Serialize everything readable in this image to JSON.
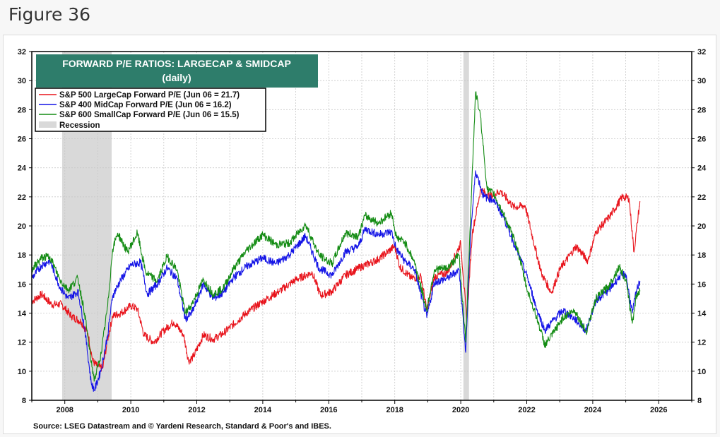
{
  "figure_label": "Figure 36",
  "chart_data": {
    "type": "line",
    "title": "FORWARD P/E RATIOS: LARGECAP & SMIDCAP",
    "subtitle": "(daily)",
    "source": "Source: LSEG Datastream and © Yardeni Research, Standard & Poor's and IBES.",
    "xlim": [
      2007.0,
      2027.0
    ],
    "ylim": [
      8,
      32
    ],
    "x_ticks": [
      "2008",
      "2010",
      "2012",
      "2014",
      "2016",
      "2018",
      "2020",
      "2022",
      "2024",
      "2026"
    ],
    "y_ticks": [
      "8",
      "10",
      "12",
      "14",
      "16",
      "18",
      "20",
      "22",
      "24",
      "26",
      "28",
      "30",
      "32"
    ],
    "grid": true,
    "legend_position": "top-left",
    "recession_label": "Recession",
    "recessions": [
      [
        2007.92,
        2009.42
      ],
      [
        2020.08,
        2020.25
      ]
    ],
    "colors": {
      "largecap": "#e8141c",
      "midcap": "#1414e6",
      "smallcap": "#148c14",
      "recession": "#d9d9d9",
      "title_box": "#2e7d6b"
    },
    "series": [
      {
        "name": "S&P 500 LargeCap Forward P/E (Jun 06 = 21.7)",
        "color": "#e8141c",
        "points": [
          [
            2007.0,
            14.8
          ],
          [
            2007.3,
            15.3
          ],
          [
            2007.6,
            14.6
          ],
          [
            2007.9,
            14.6
          ],
          [
            2008.2,
            13.8
          ],
          [
            2008.5,
            13.4
          ],
          [
            2008.7,
            12.6
          ],
          [
            2008.85,
            10.7
          ],
          [
            2009.0,
            10.3
          ],
          [
            2009.15,
            10.2
          ],
          [
            2009.3,
            12.2
          ],
          [
            2009.45,
            13.8
          ],
          [
            2009.7,
            14.0
          ],
          [
            2010.0,
            14.5
          ],
          [
            2010.2,
            14.3
          ],
          [
            2010.4,
            12.5
          ],
          [
            2010.7,
            12.0
          ],
          [
            2011.0,
            12.8
          ],
          [
            2011.3,
            13.4
          ],
          [
            2011.6,
            12.5
          ],
          [
            2011.75,
            10.7
          ],
          [
            2011.9,
            11.0
          ],
          [
            2012.2,
            12.5
          ],
          [
            2012.5,
            12.2
          ],
          [
            2012.8,
            12.6
          ],
          [
            2013.0,
            13.0
          ],
          [
            2013.5,
            14.0
          ],
          [
            2014.0,
            14.8
          ],
          [
            2014.5,
            15.5
          ],
          [
            2015.0,
            16.3
          ],
          [
            2015.5,
            16.8
          ],
          [
            2015.75,
            15.2
          ],
          [
            2016.1,
            15.5
          ],
          [
            2016.5,
            16.6
          ],
          [
            2017.0,
            17.2
          ],
          [
            2017.5,
            17.7
          ],
          [
            2018.0,
            18.6
          ],
          [
            2018.15,
            17.2
          ],
          [
            2018.5,
            16.4
          ],
          [
            2018.8,
            16.5
          ],
          [
            2018.97,
            14.2
          ],
          [
            2019.2,
            16.5
          ],
          [
            2019.6,
            16.8
          ],
          [
            2020.0,
            18.8
          ],
          [
            2020.18,
            13.5
          ],
          [
            2020.35,
            19.5
          ],
          [
            2020.6,
            22.5
          ],
          [
            2020.9,
            22.0
          ],
          [
            2021.2,
            22.4
          ],
          [
            2021.6,
            21.3
          ],
          [
            2021.95,
            21.4
          ],
          [
            2022.2,
            19.0
          ],
          [
            2022.45,
            16.7
          ],
          [
            2022.75,
            15.4
          ],
          [
            2023.0,
            17.0
          ],
          [
            2023.5,
            18.6
          ],
          [
            2023.85,
            17.6
          ],
          [
            2024.1,
            19.6
          ],
          [
            2024.5,
            20.6
          ],
          [
            2024.9,
            22.0
          ],
          [
            2025.1,
            21.9
          ],
          [
            2025.25,
            18.2
          ],
          [
            2025.35,
            20.2
          ],
          [
            2025.43,
            21.7
          ]
        ]
      },
      {
        "name": "S&P 400 MidCap Forward P/E (Jun 06 = 16.2)",
        "color": "#1414e6",
        "points": [
          [
            2007.0,
            16.4
          ],
          [
            2007.3,
            17.3
          ],
          [
            2007.55,
            17.6
          ],
          [
            2007.85,
            15.8
          ],
          [
            2008.1,
            15.0
          ],
          [
            2008.4,
            15.5
          ],
          [
            2008.6,
            13.0
          ],
          [
            2008.8,
            9.2
          ],
          [
            2008.9,
            8.7
          ],
          [
            2009.1,
            10.1
          ],
          [
            2009.3,
            12.5
          ],
          [
            2009.45,
            15.2
          ],
          [
            2009.7,
            16.3
          ],
          [
            2010.0,
            17.3
          ],
          [
            2010.3,
            17.5
          ],
          [
            2010.5,
            15.3
          ],
          [
            2010.8,
            16.0
          ],
          [
            2011.1,
            17.1
          ],
          [
            2011.4,
            16.4
          ],
          [
            2011.65,
            13.6
          ],
          [
            2011.85,
            14.0
          ],
          [
            2012.2,
            16.0
          ],
          [
            2012.5,
            15.0
          ],
          [
            2012.8,
            15.4
          ],
          [
            2013.1,
            16.4
          ],
          [
            2013.5,
            17.2
          ],
          [
            2014.0,
            17.8
          ],
          [
            2014.4,
            17.4
          ],
          [
            2014.8,
            18.0
          ],
          [
            2015.3,
            19.3
          ],
          [
            2015.7,
            17.1
          ],
          [
            2016.1,
            16.6
          ],
          [
            2016.5,
            18.2
          ],
          [
            2016.9,
            18.6
          ],
          [
            2017.1,
            19.8
          ],
          [
            2017.5,
            19.4
          ],
          [
            2017.9,
            19.6
          ],
          [
            2018.05,
            18.4
          ],
          [
            2018.3,
            17.6
          ],
          [
            2018.6,
            17.0
          ],
          [
            2018.97,
            13.7
          ],
          [
            2019.2,
            16.1
          ],
          [
            2019.6,
            16.4
          ],
          [
            2019.95,
            17.0
          ],
          [
            2020.15,
            11.3
          ],
          [
            2020.3,
            19.5
          ],
          [
            2020.45,
            23.8
          ],
          [
            2020.7,
            22.0
          ],
          [
            2021.0,
            21.8
          ],
          [
            2021.3,
            20.6
          ],
          [
            2021.7,
            18.3
          ],
          [
            2022.0,
            16.6
          ],
          [
            2022.3,
            14.3
          ],
          [
            2022.55,
            12.8
          ],
          [
            2022.8,
            13.5
          ],
          [
            2023.1,
            14.2
          ],
          [
            2023.45,
            13.6
          ],
          [
            2023.8,
            12.8
          ],
          [
            2024.1,
            14.9
          ],
          [
            2024.5,
            15.6
          ],
          [
            2024.8,
            16.5
          ],
          [
            2025.0,
            16.7
          ],
          [
            2025.2,
            14.0
          ],
          [
            2025.32,
            15.5
          ],
          [
            2025.43,
            16.2
          ]
        ]
      },
      {
        "name": "S&P 600 SmallCap Forward P/E (Jun 06 = 15.5)",
        "color": "#148c14",
        "points": [
          [
            2007.0,
            17.0
          ],
          [
            2007.3,
            17.8
          ],
          [
            2007.55,
            17.9
          ],
          [
            2007.85,
            16.3
          ],
          [
            2008.1,
            15.6
          ],
          [
            2008.4,
            16.4
          ],
          [
            2008.6,
            14.0
          ],
          [
            2008.8,
            10.6
          ],
          [
            2008.9,
            9.4
          ],
          [
            2009.1,
            11.2
          ],
          [
            2009.3,
            14.5
          ],
          [
            2009.45,
            18.4
          ],
          [
            2009.6,
            19.5
          ],
          [
            2009.9,
            18.2
          ],
          [
            2010.2,
            19.5
          ],
          [
            2010.45,
            16.8
          ],
          [
            2010.8,
            16.2
          ],
          [
            2011.1,
            17.9
          ],
          [
            2011.4,
            17.0
          ],
          [
            2011.65,
            14.0
          ],
          [
            2011.85,
            14.6
          ],
          [
            2012.2,
            16.3
          ],
          [
            2012.5,
            15.3
          ],
          [
            2012.8,
            15.7
          ],
          [
            2013.1,
            17.0
          ],
          [
            2013.5,
            18.3
          ],
          [
            2014.0,
            19.4
          ],
          [
            2014.4,
            18.7
          ],
          [
            2014.8,
            18.8
          ],
          [
            2015.3,
            20.1
          ],
          [
            2015.7,
            18.0
          ],
          [
            2016.1,
            17.4
          ],
          [
            2016.5,
            19.5
          ],
          [
            2016.9,
            19.3
          ],
          [
            2017.1,
            20.7
          ],
          [
            2017.5,
            20.2
          ],
          [
            2017.9,
            20.9
          ],
          [
            2018.05,
            19.2
          ],
          [
            2018.3,
            18.9
          ],
          [
            2018.6,
            17.5
          ],
          [
            2018.97,
            14.2
          ],
          [
            2019.2,
            17.0
          ],
          [
            2019.6,
            17.1
          ],
          [
            2019.95,
            18.0
          ],
          [
            2020.15,
            12.0
          ],
          [
            2020.3,
            21.0
          ],
          [
            2020.45,
            29.2
          ],
          [
            2020.6,
            27.5
          ],
          [
            2020.8,
            22.5
          ],
          [
            2021.0,
            22.2
          ],
          [
            2021.3,
            20.8
          ],
          [
            2021.7,
            18.6
          ],
          [
            2022.0,
            15.7
          ],
          [
            2022.3,
            13.7
          ],
          [
            2022.55,
            11.8
          ],
          [
            2022.8,
            12.6
          ],
          [
            2023.1,
            13.7
          ],
          [
            2023.45,
            14.2
          ],
          [
            2023.8,
            12.7
          ],
          [
            2024.1,
            15.0
          ],
          [
            2024.5,
            15.9
          ],
          [
            2024.8,
            17.2
          ],
          [
            2025.0,
            16.3
          ],
          [
            2025.2,
            13.3
          ],
          [
            2025.32,
            15.2
          ],
          [
            2025.43,
            15.5
          ]
        ]
      }
    ]
  }
}
